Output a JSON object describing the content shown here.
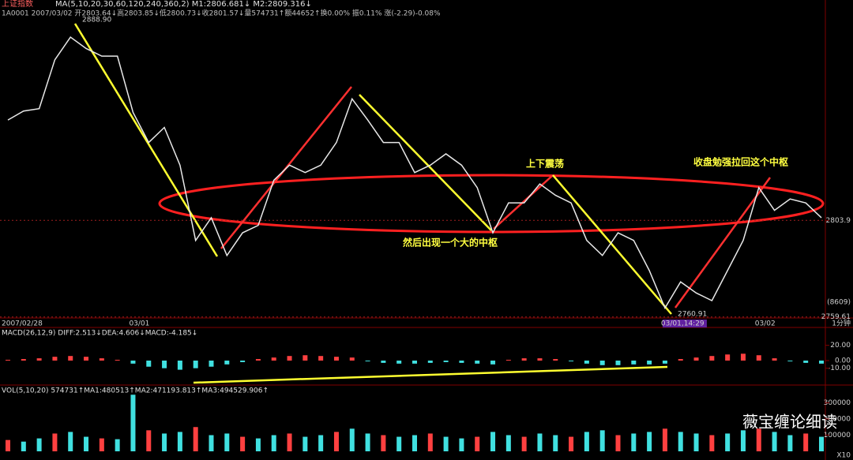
{
  "header": {
    "title": "上证指数",
    "ma_line": "MA(5,10,20,30,60,120,240,360,2) M1:2806.681↓ M2:2809.316↓",
    "quote_line": "1A0001 2007/03/02 开2803.64↓高2803.85↓低2800.73↓收2801.57↓量574731↑额44652↑换0.00% 振0.11% 涨(-2.29)-0.08%",
    "watermark": "薇宝缠论细读"
  },
  "chart_data": [
    {
      "type": "line",
      "color": "#e8e8e8",
      "ylim": [
        2759.5,
        2894.8
      ],
      "yticks": [
        2803.9,
        2759.61
      ],
      "grid": true,
      "categories": [
        "2007/02/28",
        null,
        null,
        null,
        null,
        null,
        null,
        null,
        "03/01",
        null,
        null,
        null,
        null,
        null,
        null,
        null,
        null,
        null,
        null,
        null,
        null,
        null,
        null,
        null,
        null,
        null,
        null,
        null,
        null,
        null,
        null,
        null,
        null,
        null,
        null,
        null,
        null,
        null,
        null,
        null,
        null,
        null,
        "03/01,14:29",
        null,
        null,
        null,
        null,
        null,
        "03/02",
        null,
        null,
        null,
        null
      ],
      "values": [
        2849.9,
        2854.0,
        2855.1,
        2877.5,
        2887.9,
        2882.7,
        2879.2,
        2879.2,
        2853.4,
        2839.6,
        2846.5,
        2829.2,
        2794.7,
        2805.1,
        2787.8,
        2798.2,
        2801.6,
        2822.3,
        2829.2,
        2825.8,
        2829.2,
        2839.6,
        2859.6,
        2849.9,
        2839.6,
        2839.6,
        2825.8,
        2829.2,
        2834.4,
        2829.2,
        2818.9,
        2798.2,
        2811.9,
        2811.9,
        2820.6,
        2815.4,
        2811.9,
        2794.7,
        2787.8,
        2798.2,
        2794.7,
        2780.9,
        2763.7,
        2775.7,
        2770.6,
        2767.1,
        2780.9,
        2794.7,
        2818.9,
        2808.5,
        2813.7,
        2811.9,
        2805.1
      ],
      "annotations": [
        "2888.90",
        "2760.91",
        "上下震荡",
        "然后出现一个大的中枢",
        "收盘勉强拉回这个中枢",
        "(8609)",
        "1分钟"
      ]
    },
    {
      "type": "bar",
      "title": "MACD(26,12,9) DIFF:2.513↓DEA:4.606↓MACD:-4.185↓",
      "up_color": "#ff4040",
      "down_color": "#40e0e0",
      "ylim": [
        -30,
        30
      ],
      "yticks": [
        {
          "value": 20,
          "label": "20.00"
        },
        {
          "value": 0,
          "label": "0.00"
        },
        {
          "value": -10,
          "label": "-10.00"
        }
      ],
      "values": [
        1,
        2,
        3,
        5,
        6,
        5,
        3,
        1,
        -4,
        -8,
        -10,
        -12,
        -10,
        -8,
        -5,
        -2,
        2,
        4,
        6,
        7,
        6,
        5,
        4,
        -1,
        -3,
        -4,
        -4,
        -3,
        -2,
        -3,
        -4,
        -5,
        1,
        3,
        3,
        2,
        -1,
        -4,
        -6,
        -6,
        -5,
        -5,
        -4,
        2,
        4,
        6,
        8,
        9,
        7,
        3,
        -1,
        -3,
        -4
      ]
    },
    {
      "type": "bar",
      "title": "VOL(5,10,20) 574731↑MA1:480513↑MA2:471193.813↑MA3:494529.906↑",
      "up_color": "#ff4040",
      "down_color": "#40e0e0",
      "ylim": [
        0,
        400000
      ],
      "yticks": [
        300000,
        200000,
        100000
      ],
      "unit_label": "X10",
      "values": [
        70000,
        60000,
        80000,
        110000,
        120000,
        90000,
        80000,
        75000,
        350000,
        130000,
        110000,
        120000,
        150000,
        100000,
        110000,
        90000,
        80000,
        100000,
        110000,
        90000,
        100000,
        120000,
        140000,
        110000,
        100000,
        90000,
        100000,
        110000,
        90000,
        80000,
        90000,
        120000,
        100000,
        90000,
        110000,
        100000,
        90000,
        120000,
        130000,
        100000,
        110000,
        120000,
        140000,
        120000,
        110000,
        100000,
        110000,
        130000,
        140000,
        120000,
        100000,
        110000,
        90000
      ]
    }
  ]
}
